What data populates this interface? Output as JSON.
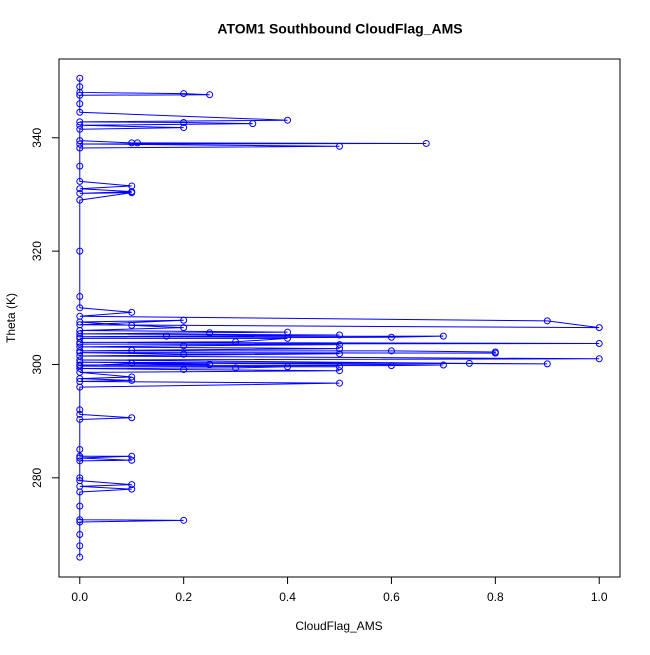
{
  "chart_data": {
    "type": "line",
    "title": "ATOM1 Southbound CloudFlag_AMS",
    "x_label": "CloudFlag_AMS",
    "y_label": "Theta (K)",
    "color": "#0000ff",
    "markers": true,
    "xlim": [
      -0.04,
      1.04
    ],
    "ylim": [
      262.5,
      353.9
    ],
    "xticks": [
      {
        "value": 0,
        "label": "0.0"
      },
      0.2,
      0.4,
      0.6,
      0.8,
      {
        "value": 1,
        "label": "1.0"
      }
    ],
    "yticks": [
      280,
      300,
      320,
      340
    ],
    "x": [
      0,
      0,
      0,
      0.2,
      0.25,
      0,
      0,
      0,
      0.4,
      0,
      0.2,
      0.333,
      0,
      0.2,
      0,
      0,
      0.1,
      0.111,
      0.667,
      0,
      0.5,
      0,
      0,
      0,
      0.1,
      0,
      0.1,
      0,
      0.1,
      0,
      0,
      0,
      0,
      0.1,
      0,
      0.9,
      1.0,
      0,
      0.2,
      0,
      0.1,
      0.2,
      0,
      0.4,
      0.25,
      0,
      0.5,
      0.167,
      0,
      0.7,
      0.6,
      0,
      0.4,
      0.3,
      0,
      1.0,
      0,
      0.5,
      0.2,
      0,
      0.5,
      0.1,
      0,
      0.6,
      0.8,
      0.8,
      0,
      0.2,
      0.5,
      0,
      1.0,
      0,
      0.75,
      0.9,
      0,
      0.7,
      0.6,
      0,
      0.25,
      0.1,
      0,
      0.5,
      0.4,
      0.3,
      0,
      0.2,
      0.5,
      0,
      0.1,
      0,
      0.1,
      0,
      0.5,
      0,
      0,
      0,
      0.1,
      0,
      0,
      0,
      0.1,
      0,
      0.1,
      0,
      0,
      0,
      0.1,
      0,
      0.1,
      0,
      0,
      0,
      0.2,
      0,
      0,
      0,
      0
    ],
    "values": [
      350.5,
      349,
      348,
      347.8,
      347.6,
      347.5,
      346,
      344.5,
      343.1,
      342.8,
      342.7,
      342.5,
      342.2,
      341.8,
      341.5,
      339.5,
      339.1,
      339.1,
      339.0,
      338.9,
      338.5,
      338.2,
      335,
      332.3,
      331.5,
      331,
      330.5,
      330.2,
      330.3,
      329,
      320,
      312,
      310,
      309.2,
      308.5,
      307.7,
      306.5,
      307,
      307.8,
      307.5,
      306.9,
      306.5,
      306,
      305.7,
      305.6,
      305.4,
      305.2,
      305.0,
      304.9,
      305.0,
      304.8,
      304.6,
      304.6,
      304.0,
      303.9,
      303.7,
      303.6,
      303.5,
      303.3,
      303.1,
      302.8,
      302.5,
      302.4,
      302.4,
      302.2,
      302.0,
      302.1,
      301.8,
      301.9,
      301.5,
      301.0,
      300.8,
      300.2,
      300.1,
      300.4,
      299.9,
      299.8,
      299.9,
      300.0,
      300.2,
      299.7,
      299.6,
      299.6,
      299.4,
      299.3,
      299.1,
      298.9,
      298.6,
      297.8,
      297.5,
      297.2,
      297,
      296.7,
      296,
      292,
      291.2,
      290.6,
      290.3,
      285,
      283.8,
      283.8,
      283.5,
      283.1,
      283,
      280,
      279.5,
      278.8,
      278.5,
      278.0,
      277.5,
      275,
      272.6,
      272.5,
      272.2,
      270,
      268,
      266
    ]
  }
}
